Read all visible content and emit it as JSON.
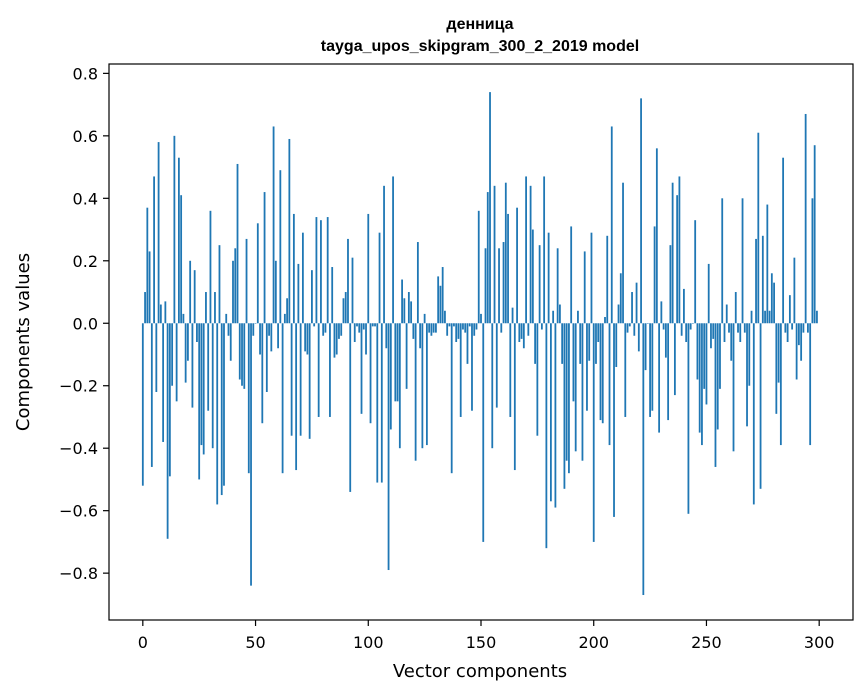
{
  "chart_data": {
    "type": "bar",
    "title": "денница",
    "subtitle": "tayga_upos_skipgram_300_2_2019 model",
    "xlabel": "Vector components",
    "ylabel": "Components values",
    "xlim": [
      -15,
      315
    ],
    "ylim": [
      -0.95,
      0.83
    ],
    "xticks": [
      0,
      50,
      100,
      150,
      200,
      250,
      300
    ],
    "yticks": [
      -0.8,
      -0.6,
      -0.4,
      -0.2,
      0.0,
      0.2,
      0.4,
      0.6,
      0.8
    ],
    "ytick_labels": [
      "−0.8",
      "−0.6",
      "−0.4",
      "−0.2",
      "0.0",
      "0.2",
      "0.4",
      "0.6",
      "0.8"
    ],
    "xtick_labels": [
      "0",
      "50",
      "100",
      "150",
      "200",
      "250",
      "300"
    ],
    "grid": false,
    "bar_color": "#1f77b4",
    "series": [
      {
        "values": [
          -0.52,
          0.1,
          0.37,
          0.23,
          -0.46,
          0.47,
          -0.22,
          0.58,
          0.06,
          -0.38,
          0.07,
          -0.69,
          -0.49,
          -0.2,
          0.6,
          -0.25,
          0.53,
          0.41,
          0.03,
          -0.19,
          -0.12,
          0.2,
          -0.27,
          0.17,
          -0.06,
          -0.5,
          -0.39,
          -0.42,
          0.1,
          -0.28,
          0.36,
          -0.4,
          0.1,
          -0.58,
          0.25,
          -0.55,
          -0.52,
          0.03,
          -0.04,
          -0.12,
          0.2,
          0.24,
          0.51,
          -0.18,
          -0.2,
          -0.21,
          0.27,
          -0.48,
          -0.84,
          -0.04,
          0.0,
          0.32,
          -0.1,
          -0.32,
          0.42,
          -0.22,
          -0.04,
          -0.09,
          0.63,
          0.2,
          -0.08,
          0.49,
          -0.48,
          0.03,
          0.08,
          0.59,
          -0.36,
          0.35,
          -0.47,
          0.19,
          -0.36,
          0.29,
          -0.09,
          -0.1,
          -0.37,
          0.17,
          -0.01,
          0.34,
          -0.3,
          0.33,
          -0.04,
          -0.03,
          0.34,
          -0.3,
          0.18,
          -0.11,
          -0.1,
          -0.05,
          -0.04,
          0.08,
          0.1,
          0.27,
          -0.54,
          0.21,
          -0.06,
          -0.01,
          -0.03,
          -0.29,
          -0.02,
          -0.1,
          0.35,
          -0.32,
          -0.01,
          -0.01,
          -0.51,
          0.29,
          -0.51,
          0.44,
          -0.08,
          -0.79,
          -0.34,
          0.47,
          -0.25,
          -0.25,
          -0.4,
          0.14,
          0.08,
          -0.21,
          0.1,
          0.07,
          -0.05,
          -0.44,
          0.26,
          -0.08,
          -0.4,
          0.03,
          -0.39,
          -0.03,
          -0.04,
          -0.03,
          -0.03,
          0.15,
          0.12,
          0.18,
          0.04,
          -0.04,
          -0.01,
          -0.48,
          -0.01,
          -0.06,
          -0.05,
          -0.3,
          -0.02,
          -0.03,
          -0.13,
          -0.01,
          -0.28,
          -0.04,
          -0.02,
          0.36,
          0.03,
          -0.7,
          0.24,
          0.42,
          0.74,
          -0.4,
          0.44,
          -0.27,
          0.24,
          -0.03,
          0.26,
          0.45,
          0.35,
          -0.3,
          0.05,
          -0.47,
          0.37,
          -0.06,
          -0.05,
          -0.08,
          0.47,
          -0.04,
          0.44,
          0.3,
          -0.13,
          -0.36,
          0.25,
          -0.02,
          0.47,
          -0.72,
          0.29,
          -0.57,
          0.04,
          -0.59,
          0.24,
          0.06,
          -0.13,
          -0.53,
          -0.44,
          -0.48,
          0.31,
          -0.25,
          -0.41,
          0.04,
          -0.13,
          -0.44,
          0.23,
          -0.28,
          -0.12,
          0.29,
          -0.7,
          -0.13,
          -0.06,
          -0.31,
          -0.32,
          0.02,
          0.28,
          -0.39,
          0.63,
          -0.62,
          -0.14,
          0.06,
          0.16,
          0.45,
          -0.3,
          -0.03,
          -0.01,
          0.1,
          -0.04,
          0.13,
          -0.09,
          0.72,
          -0.87,
          -0.15,
          0.0,
          -0.3,
          -0.28,
          0.31,
          0.56,
          -0.35,
          0.07,
          -0.02,
          -0.11,
          -0.31,
          0.25,
          0.45,
          -0.23,
          0.41,
          0.47,
          -0.04,
          0.11,
          -0.06,
          -0.61,
          -0.02,
          0.0,
          0.33,
          -0.18,
          -0.35,
          -0.39,
          -0.21,
          -0.26,
          0.19,
          -0.08,
          -0.05,
          -0.46,
          -0.34,
          -0.21,
          0.4,
          -0.06,
          0.06,
          -0.03,
          -0.12,
          -0.41,
          0.1,
          -0.03,
          -0.06,
          0.4,
          -0.03,
          -0.33,
          -0.2,
          0.04,
          -0.58,
          0.27,
          0.61,
          -0.53,
          0.28,
          0.04,
          0.38,
          0.04,
          0.16,
          0.13,
          -0.29,
          -0.19,
          -0.39,
          0.53,
          -0.03,
          -0.06,
          0.09,
          -0.02,
          0.21,
          -0.18,
          -0.07,
          -0.12,
          -0.03,
          0.67,
          -0.03,
          -0.39,
          0.4,
          0.57,
          0.04
        ]
      }
    ]
  }
}
